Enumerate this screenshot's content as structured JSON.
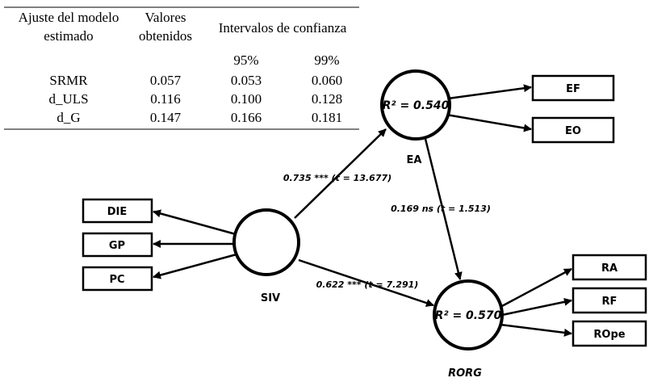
{
  "table": {
    "header": {
      "col1": [
        "Ajuste del modelo",
        "estimado"
      ],
      "col2": [
        "Valores",
        "obtenidos"
      ],
      "col3": "Intervalos de confianza"
    },
    "subheaders": [
      "95%",
      "99%"
    ],
    "rows": [
      [
        "SRMR",
        "0.057",
        "0.053",
        "0.060"
      ],
      [
        "d_ULS",
        "0.116",
        "0.100",
        "0.128"
      ],
      [
        "d_G",
        "0.147",
        "0.166",
        "0.181"
      ]
    ]
  },
  "nodes": {
    "EA": {
      "label": "EA",
      "r2": "R² = 0.540"
    },
    "SIV": {
      "label": "SIV"
    },
    "RORG": {
      "label": "RORG",
      "r2": "R² = 0.570"
    }
  },
  "indicators": {
    "EA": [
      "EF",
      "EO"
    ],
    "SIV": [
      "DIE",
      "GP",
      "PC"
    ],
    "RORG": [
      "RA",
      "RF",
      "ROpe"
    ]
  },
  "paths": [
    {
      "from": "SIV",
      "to": "EA",
      "label": "0.735 *** (t = 13.677)"
    },
    {
      "from": "SIV",
      "to": "RORG",
      "label": "0.622 *** (t = 7.291)"
    },
    {
      "from": "EA",
      "to": "RORG",
      "label": "0.169 ns (t = 1.513)"
    }
  ]
}
